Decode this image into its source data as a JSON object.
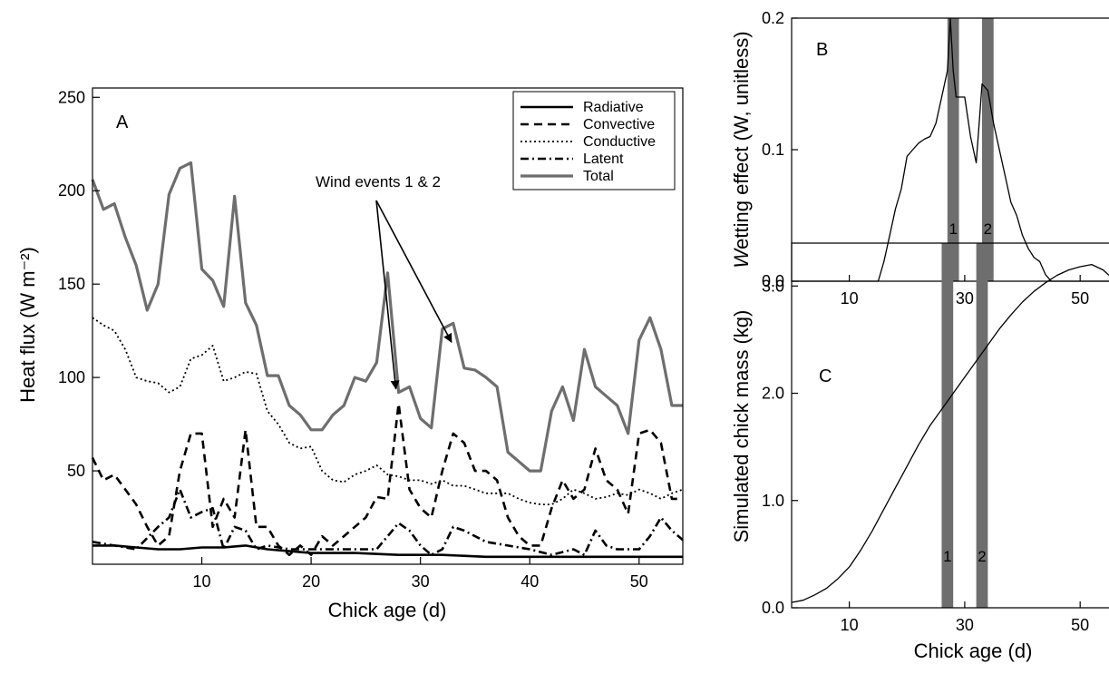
{
  "colors": {
    "total": "#6e6e6e",
    "band": "#6e6e6e",
    "ink": "#000000"
  },
  "chart_data": [
    {
      "type": "line",
      "panel": "A",
      "xlabel": "Chick age (d)",
      "ylabel": "Heat flux (W m⁻²)",
      "xlim": [
        0,
        54
      ],
      "ylim": [
        0,
        255
      ],
      "xticks": [
        10,
        20,
        30,
        40,
        50
      ],
      "yticks": [
        50,
        100,
        150,
        200,
        250
      ],
      "legend_position": "top-right",
      "annotation": {
        "text": "Wind events 1 & 2",
        "points_to_x": [
          28,
          33.5
        ]
      },
      "series": [
        {
          "name": "Radiative",
          "style": "solid-black",
          "x": [
            0,
            2,
            4,
            6,
            8,
            10,
            12,
            14,
            16,
            18,
            20,
            24,
            28,
            32,
            36,
            40,
            44,
            48,
            54
          ],
          "y": [
            10,
            10,
            9,
            8,
            8,
            9,
            9,
            10,
            8,
            7,
            6,
            6,
            5,
            5,
            4,
            4,
            4,
            4,
            4
          ]
        },
        {
          "name": "Convective",
          "style": "dashed-black",
          "x": [
            0,
            1,
            2,
            3,
            4,
            5,
            6,
            7,
            8,
            9,
            10,
            11,
            12,
            13,
            14,
            15,
            16,
            17,
            18,
            19,
            20,
            21,
            22,
            23,
            24,
            25,
            26,
            27,
            28,
            29,
            30,
            31,
            32,
            33,
            34,
            35,
            36,
            37,
            38,
            39,
            40,
            41,
            42,
            43,
            44,
            45,
            46,
            47,
            48,
            49,
            50,
            51,
            52,
            53,
            54
          ],
          "y": [
            57,
            45,
            48,
            40,
            32,
            20,
            10,
            15,
            50,
            70,
            70,
            20,
            35,
            25,
            72,
            20,
            20,
            10,
            5,
            10,
            5,
            15,
            10,
            15,
            20,
            25,
            36,
            35,
            86,
            40,
            30,
            25,
            50,
            70,
            65,
            50,
            50,
            45,
            25,
            15,
            10,
            10,
            30,
            45,
            35,
            40,
            62,
            45,
            40,
            27,
            70,
            72,
            65,
            35,
            35
          ]
        },
        {
          "name": "Conductive",
          "style": "dotted-black",
          "x": [
            0,
            1,
            2,
            3,
            4,
            5,
            6,
            7,
            8,
            9,
            10,
            11,
            12,
            13,
            14,
            15,
            16,
            17,
            18,
            19,
            20,
            21,
            22,
            23,
            24,
            25,
            26,
            27,
            28,
            29,
            30,
            31,
            32,
            33,
            34,
            35,
            36,
            37,
            38,
            39,
            40,
            41,
            42,
            43,
            44,
            45,
            46,
            47,
            48,
            49,
            50,
            51,
            52,
            53,
            54
          ],
          "y": [
            132,
            128,
            125,
            115,
            100,
            98,
            97,
            92,
            95,
            110,
            112,
            117,
            98,
            100,
            103,
            102,
            82,
            75,
            65,
            62,
            63,
            50,
            45,
            44,
            48,
            50,
            53,
            48,
            47,
            45,
            45,
            43,
            45,
            42,
            42,
            40,
            38,
            38,
            38,
            35,
            33,
            32,
            32,
            35,
            40,
            38,
            35,
            36,
            38,
            37,
            40,
            38,
            35,
            38,
            40
          ]
        },
        {
          "name": "Latent",
          "style": "dashdot-black",
          "x": [
            0,
            2,
            4,
            6,
            7,
            8,
            9,
            10,
            11,
            12,
            13,
            14,
            15,
            16,
            18,
            20,
            22,
            24,
            26,
            27,
            28,
            29,
            30,
            31,
            32,
            33,
            34,
            36,
            38,
            40,
            42,
            44,
            45,
            46,
            47,
            48,
            50,
            51,
            52,
            53,
            54
          ],
          "y": [
            12,
            10,
            8,
            20,
            25,
            40,
            25,
            28,
            30,
            8,
            20,
            18,
            8,
            10,
            8,
            8,
            8,
            8,
            8,
            15,
            22,
            18,
            10,
            5,
            8,
            20,
            18,
            12,
            10,
            8,
            5,
            8,
            5,
            18,
            10,
            8,
            8,
            15,
            25,
            18,
            13
          ]
        },
        {
          "name": "Total",
          "style": "solid-gray-thick",
          "x": [
            0,
            1,
            2,
            3,
            4,
            5,
            6,
            7,
            8,
            9,
            10,
            11,
            12,
            13,
            14,
            15,
            16,
            17,
            18,
            19,
            20,
            21,
            22,
            23,
            24,
            25,
            26,
            27,
            28,
            29,
            30,
            31,
            32,
            33,
            34,
            35,
            36,
            37,
            38,
            39,
            40,
            41,
            42,
            43,
            44,
            45,
            46,
            47,
            48,
            49,
            50,
            51,
            52,
            53,
            54
          ],
          "y": [
            206,
            190,
            193,
            175,
            160,
            136,
            150,
            198,
            212,
            215,
            158,
            152,
            138,
            197,
            140,
            128,
            101,
            101,
            85,
            80,
            72,
            72,
            80,
            85,
            100,
            98,
            108,
            156,
            92,
            95,
            78,
            73,
            126,
            129,
            105,
            104,
            100,
            95,
            60,
            55,
            50,
            50,
            82,
            95,
            77,
            115,
            95,
            90,
            85,
            70,
            120,
            132,
            115,
            85,
            85
          ]
        }
      ]
    },
    {
      "type": "line",
      "panel": "B",
      "xlabel": "",
      "ylabel": "Wetting effect (W, unitless)",
      "xlim": [
        0,
        55
      ],
      "ylim": [
        0,
        0.2
      ],
      "xticks": [
        10,
        30,
        50
      ],
      "yticks": [
        0.0,
        0.1,
        0.2
      ],
      "ytick_labels": [
        "0.0",
        "0.1",
        "0.2"
      ],
      "bands": [
        {
          "label": "1",
          "x_range": [
            27.0,
            29.0
          ]
        },
        {
          "label": "2",
          "x_range": [
            33.0,
            35.0
          ]
        }
      ],
      "series": [
        {
          "name": "Wetting effect",
          "x": [
            0,
            5,
            10,
            15,
            16,
            17,
            18,
            19,
            20,
            21,
            22,
            23,
            24,
            25,
            26,
            27,
            27.5,
            28,
            28.5,
            29,
            30,
            31,
            32,
            33,
            34,
            35,
            36,
            37,
            38,
            39,
            40,
            41,
            42,
            43,
            44,
            45,
            46,
            50,
            55
          ],
          "y": [
            0,
            0,
            0,
            0,
            0.015,
            0.035,
            0.055,
            0.07,
            0.095,
            0.1,
            0.105,
            0.108,
            0.11,
            0.12,
            0.14,
            0.16,
            0.2,
            0.16,
            0.14,
            0.14,
            0.14,
            0.11,
            0.09,
            0.15,
            0.145,
            0.12,
            0.1,
            0.08,
            0.06,
            0.05,
            0.035,
            0.025,
            0.018,
            0.015,
            0.005,
            0,
            0,
            0,
            0
          ]
        }
      ]
    },
    {
      "type": "line",
      "panel": "C",
      "xlabel": "Chick age (d)",
      "ylabel": "Simulated chick mass (kg)",
      "xlim": [
        0,
        55
      ],
      "ylim": [
        0,
        3.4
      ],
      "xticks": [
        10,
        30,
        50
      ],
      "yticks": [
        0.0,
        1.0,
        2.0,
        3.0
      ],
      "ytick_labels": [
        "0.0",
        "1.0",
        "2.0",
        "3.0"
      ],
      "bands": [
        {
          "label": "1",
          "x_range": [
            26.0,
            28.0
          ]
        },
        {
          "label": "2",
          "x_range": [
            32.0,
            34.0
          ]
        }
      ],
      "series": [
        {
          "name": "Simulated chick mass",
          "x": [
            0,
            2,
            4,
            6,
            8,
            10,
            12,
            14,
            16,
            18,
            20,
            22,
            24,
            26,
            28,
            30,
            32,
            34,
            36,
            38,
            40,
            42,
            44,
            46,
            48,
            50,
            52,
            54,
            55
          ],
          "y": [
            0.05,
            0.07,
            0.12,
            0.18,
            0.27,
            0.38,
            0.54,
            0.72,
            0.92,
            1.12,
            1.32,
            1.52,
            1.7,
            1.85,
            2.0,
            2.15,
            2.3,
            2.45,
            2.6,
            2.73,
            2.85,
            2.95,
            3.03,
            3.1,
            3.15,
            3.18,
            3.2,
            3.15,
            3.1
          ]
        }
      ]
    }
  ]
}
